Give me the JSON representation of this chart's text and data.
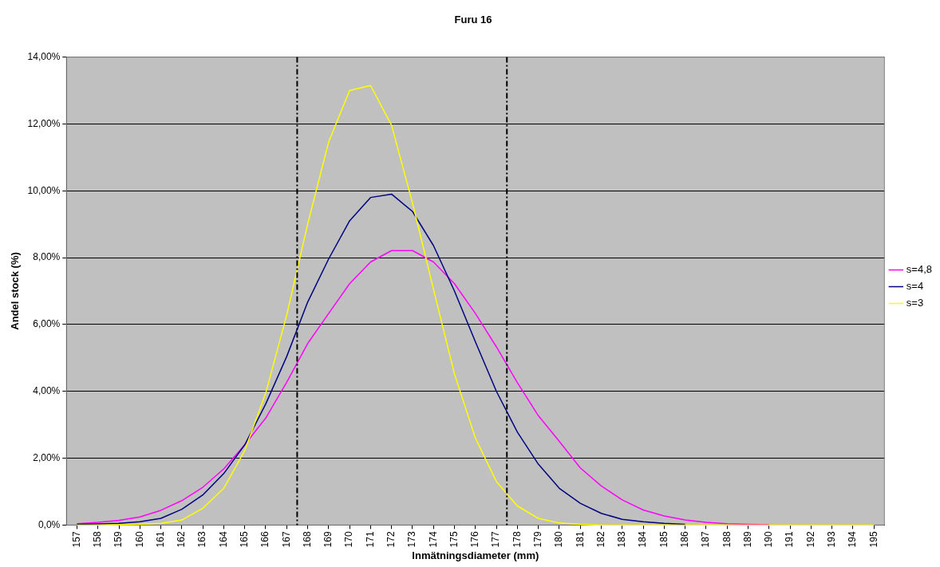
{
  "chart_data": {
    "type": "line",
    "title": "Furu 16",
    "xlabel": "Inmätningsdiameter (mm)",
    "ylabel": "Andel stock (%)",
    "x": [
      157,
      158,
      159,
      160,
      161,
      162,
      163,
      164,
      165,
      166,
      167,
      168,
      169,
      170,
      171,
      172,
      173,
      174,
      175,
      176,
      177,
      178,
      179,
      180,
      181,
      182,
      183,
      184,
      185,
      186,
      187,
      188,
      189,
      190,
      191,
      192,
      193,
      194,
      195
    ],
    "xlim": [
      156.5,
      195.5
    ],
    "xticks": [
      157,
      158,
      159,
      160,
      161,
      162,
      163,
      164,
      165,
      166,
      167,
      168,
      169,
      170,
      171,
      172,
      173,
      174,
      175,
      176,
      177,
      178,
      179,
      180,
      181,
      182,
      183,
      184,
      185,
      186,
      187,
      188,
      189,
      190,
      191,
      192,
      193,
      194,
      195
    ],
    "ylim": [
      0,
      14
    ],
    "yticks": [
      {
        "value": 0,
        "label": "0,0%"
      },
      {
        "value": 2,
        "label": "2,00%"
      },
      {
        "value": 4,
        "label": "4,00%"
      },
      {
        "value": 6,
        "label": "6,00%"
      },
      {
        "value": 8,
        "label": "8,00%"
      },
      {
        "value": 10,
        "label": "10,00%"
      },
      {
        "value": 12,
        "label": "12,00%"
      },
      {
        "value": 14,
        "label": "14,00%"
      }
    ],
    "series": [
      {
        "name": "s=4,8",
        "color": "#ff00ff",
        "values": [
          0.04,
          0.08,
          0.14,
          0.24,
          0.44,
          0.73,
          1.13,
          1.68,
          2.4,
          3.2,
          4.27,
          5.43,
          6.33,
          7.22,
          7.87,
          8.21,
          8.21,
          7.87,
          7.22,
          6.33,
          5.33,
          4.26,
          3.27,
          2.5,
          1.71,
          1.17,
          0.75,
          0.45,
          0.27,
          0.15,
          0.08,
          0.04,
          0.02,
          0.01,
          null,
          null,
          null,
          null,
          null
        ]
      },
      {
        "name": "s=4",
        "color": "#000080",
        "values": [
          0.02,
          0.03,
          0.05,
          0.1,
          0.2,
          0.47,
          0.9,
          1.54,
          2.4,
          3.62,
          5.04,
          6.67,
          7.96,
          9.1,
          9.8,
          9.9,
          9.38,
          8.36,
          7.0,
          5.48,
          4.0,
          2.78,
          1.82,
          1.1,
          0.65,
          0.35,
          0.17,
          0.1,
          0.05,
          0.02,
          null,
          null,
          null,
          null,
          null,
          null,
          null,
          null,
          null
        ]
      },
      {
        "name": "s=3",
        "color": "#ffff00",
        "values": [
          0,
          0,
          0.01,
          0.02,
          0.05,
          0.15,
          0.5,
          1.1,
          2.23,
          3.95,
          6.28,
          9.0,
          11.46,
          13.0,
          13.15,
          11.96,
          9.63,
          7.05,
          4.52,
          2.6,
          1.3,
          0.57,
          0.2,
          0.06,
          0.02,
          0,
          0,
          0,
          0,
          0,
          0,
          0,
          0,
          0,
          0,
          0,
          0,
          0,
          0
        ]
      }
    ],
    "ref_lines": [
      {
        "axis": "x",
        "value": 167.5,
        "color": "#000000",
        "line_style": "dashed"
      },
      {
        "axis": "x",
        "value": 177.5,
        "color": "#000000",
        "line_style": "dashed"
      }
    ],
    "grid": "y",
    "legend": "right",
    "marker": "none",
    "line_style": "solid"
  }
}
